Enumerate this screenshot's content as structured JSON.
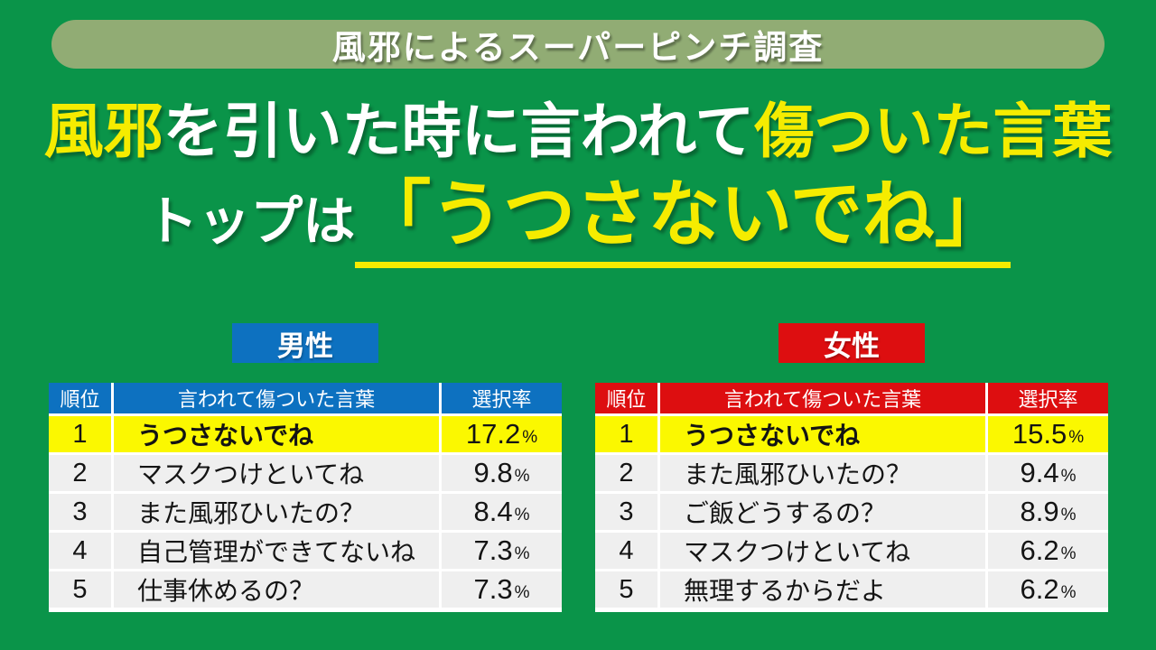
{
  "banner": {
    "label": "風邪によるスーパーピンチ調査"
  },
  "title": {
    "seg1": "風邪",
    "seg2": "を引いた時に言われて",
    "seg3": "傷ついた言葉",
    "line2_prefix": "トップは",
    "line2_quote": "「うつさないでね」"
  },
  "labels": {
    "percent_sign": "%"
  },
  "colors": {
    "background_green": "#0a9449",
    "banner_green": "#91ac74",
    "accent_yellow_title": "#f5ec00",
    "highlight_yellow_row": "#fbf800",
    "male_blue": "#0d71c0",
    "female_red": "#dd0e10",
    "row_gray": "#efefef"
  },
  "chart_data": [
    {
      "type": "table",
      "title": "男性",
      "accent_color": "#0d71c0",
      "columns": {
        "rank": "順位",
        "phrase": "言われて傷ついた言葉",
        "rate": "選択率"
      },
      "rows": [
        {
          "rank": "1",
          "phrase": "うつさないでね",
          "rate": "17.2",
          "highlight": true
        },
        {
          "rank": "2",
          "phrase": "マスクつけといてね",
          "rate": "9.8",
          "highlight": false
        },
        {
          "rank": "3",
          "phrase": "また風邪ひいたの？",
          "rate": "8.4",
          "highlight": false
        },
        {
          "rank": "4",
          "phrase": "自己管理ができてないね",
          "rate": "7.3",
          "highlight": false
        },
        {
          "rank": "5",
          "phrase": "仕事休めるの？",
          "rate": "7.3",
          "highlight": false
        }
      ]
    },
    {
      "type": "table",
      "title": "女性",
      "accent_color": "#dd0e10",
      "columns": {
        "rank": "順位",
        "phrase": "言われて傷ついた言葉",
        "rate": "選択率"
      },
      "rows": [
        {
          "rank": "1",
          "phrase": "うつさないでね",
          "rate": "15.5",
          "highlight": true
        },
        {
          "rank": "2",
          "phrase": "また風邪ひいたの？",
          "rate": "9.4",
          "highlight": false
        },
        {
          "rank": "3",
          "phrase": "ご飯どうするの？",
          "rate": "8.9",
          "highlight": false
        },
        {
          "rank": "4",
          "phrase": "マスクつけといてね",
          "rate": "6.2",
          "highlight": false
        },
        {
          "rank": "5",
          "phrase": "無理するからだよ",
          "rate": "6.2",
          "highlight": false
        }
      ]
    }
  ]
}
